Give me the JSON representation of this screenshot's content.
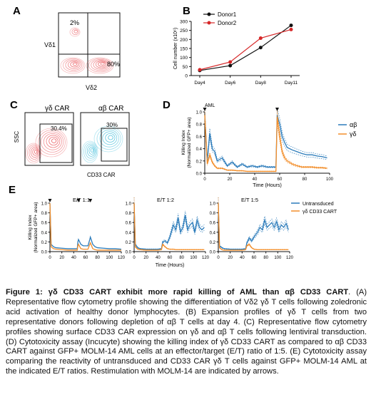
{
  "panels": {
    "A": {
      "label": "A",
      "ylabel": "Vδ1",
      "xlabel": "Vδ2",
      "q_upper_left": "2%",
      "q_lower_right": "80%"
    },
    "B": {
      "label": "B"
    },
    "C": {
      "label": "C",
      "ylabel": "SSC",
      "xlabel": "CD33 CAR",
      "plot1": {
        "title": "γδ CAR",
        "gate": "30.4%"
      },
      "plot2": {
        "title": "αβ CAR",
        "gate": "30%"
      }
    },
    "D": {
      "label": "D",
      "annotation": "AML"
    },
    "E": {
      "label": "E"
    }
  },
  "caption": {
    "bold": "Figure 1: γδ CD33 CART exhibit more rapid killing of AML than αβ CD33 CART",
    "body": ". (A) Representative flow cytometry profile showing the differentiation of Vδ2 γδ T cells following zoledronic acid activation of healthy donor lymphocytes. (B) Expansion profiles of γδ T cells from two representative donors following depletion of αβ T cells at day 4. (C) Representative flow cytometry profiles showing surface CD33 CAR expression on γδ and αβ T cells following lentiviral transduction. (D) Cytotoxicity assay (Incucyte) showing the killing index of γδ CD33 CART as compared to αβ CD33 CART against GFP+ MOLM-14 AML cells at an effector/target (E/T) ratio of 1:5. (E) Cytotoxicity assay comparing the reactivity of untransduced and CD33 CAR γδ T cells against GFP+ MOLM-14 AML at the indicated E/T ratios. Restimulation with MOLM-14 are indicated by arrows."
  },
  "colors": {
    "donor1": "#111111",
    "donor2": "#d62728",
    "ab": "#2b7bba",
    "gd": "#f28e2b",
    "flowA": "#e8444a",
    "flowC2": "#29b6d6"
  },
  "chart_data": [
    {
      "type": "line",
      "ylabel": "Cell number (x10⁶)",
      "categories": [
        "Day4",
        "Day6",
        "Day8",
        "Day11"
      ],
      "ylim": [
        0,
        300
      ],
      "yticks": [
        "0",
        "50",
        "100",
        "150",
        "200",
        "250",
        "300"
      ],
      "legend": "top-left",
      "series": [
        {
          "name": "Donor1",
          "values": [
            28,
            55,
            155,
            278
          ]
        },
        {
          "name": "Donor2",
          "values": [
            32,
            75,
            207,
            255
          ]
        }
      ]
    },
    {
      "type": "line",
      "ylabel": "Killing Index (Normalized GFP+ area)",
      "xlabel": "Time (Hours)",
      "xlim": [
        0,
        100
      ],
      "ylim": [
        0,
        1.0
      ],
      "xticks": [
        "0",
        "20",
        "40",
        "60",
        "80",
        "100"
      ],
      "yticks": [
        "0.0",
        "0.2",
        "0.4",
        "0.6",
        "0.8",
        "1.0"
      ],
      "legend": "right",
      "arrows_at": [
        0,
        58
      ],
      "series": [
        {
          "name": "αβ",
          "x": [
            0,
            2,
            4,
            6,
            8,
            10,
            14,
            18,
            22,
            26,
            30,
            34,
            38,
            42,
            46,
            50,
            54,
            56,
            57,
            58,
            60,
            62,
            64,
            66,
            70,
            74,
            78,
            82,
            86,
            90,
            94,
            98
          ],
          "values": [
            0.95,
            0.2,
            0.65,
            0.4,
            0.35,
            0.2,
            0.25,
            0.12,
            0.18,
            0.1,
            0.15,
            0.1,
            0.12,
            0.1,
            0.12,
            0.1,
            0.1,
            0.1,
            0.1,
            0.95,
            0.8,
            0.6,
            0.5,
            0.42,
            0.38,
            0.35,
            0.32,
            0.3,
            0.3,
            0.28,
            0.27,
            0.25
          ]
        },
        {
          "name": "γδ",
          "x": [
            0,
            2,
            4,
            6,
            8,
            10,
            14,
            18,
            22,
            26,
            30,
            34,
            38,
            42,
            46,
            50,
            54,
            56,
            57,
            58,
            60,
            62,
            64,
            66,
            70,
            74,
            78,
            82,
            86,
            90,
            94,
            98
          ],
          "values": [
            0.95,
            0.15,
            0.3,
            0.18,
            0.12,
            0.08,
            0.08,
            0.05,
            0.05,
            0.04,
            0.04,
            0.03,
            0.03,
            0.03,
            0.03,
            0.03,
            0.03,
            0.03,
            0.03,
            0.92,
            0.6,
            0.35,
            0.25,
            0.2,
            0.15,
            0.12,
            0.1,
            0.1,
            0.1,
            0.09,
            0.09,
            0.08
          ]
        }
      ]
    },
    {
      "type": "line",
      "ylabel": "Killing Index (Normalized GFP+ area)",
      "xlabel": "Time (Hours)",
      "xlim": [
        0,
        120
      ],
      "ylim": [
        0,
        1.0
      ],
      "xticks": [
        "0",
        "20",
        "40",
        "60",
        "80",
        "100",
        "120"
      ],
      "yticks": [
        "0.0",
        "0.2",
        "0.4",
        "0.6",
        "0.8",
        "1.0"
      ],
      "legend": "right",
      "panels": [
        {
          "title": "E/T 1:1",
          "arrows_at": [
            0,
            48,
            68
          ],
          "series": [
            {
              "name": "Untransduced",
              "x": [
                0,
                2,
                6,
                10,
                20,
                30,
                40,
                46,
                47,
                48,
                52,
                56,
                60,
                64,
                67,
                68,
                72,
                76,
                80,
                90,
                100,
                110,
                120
              ],
              "values": [
                1.0,
                0.15,
                0.1,
                0.08,
                0.07,
                0.06,
                0.06,
                0.06,
                0.2,
                0.25,
                0.15,
                0.12,
                0.12,
                0.12,
                0.25,
                0.3,
                0.15,
                0.1,
                0.08,
                0.07,
                0.06,
                0.06,
                0.05
              ]
            },
            {
              "name": "γδ CD33 CART",
              "x": [
                0,
                2,
                6,
                10,
                20,
                30,
                40,
                46,
                47,
                48,
                52,
                56,
                60,
                64,
                67,
                68,
                72,
                76,
                80,
                90,
                100,
                110,
                120
              ],
              "values": [
                1.0,
                0.1,
                0.06,
                0.05,
                0.04,
                0.03,
                0.03,
                0.03,
                0.12,
                0.15,
                0.06,
                0.05,
                0.05,
                0.05,
                0.15,
                0.18,
                0.06,
                0.04,
                0.03,
                0.03,
                0.03,
                0.03,
                0.03
              ]
            }
          ]
        },
        {
          "title": "E/T 1:2",
          "series": [
            {
              "name": "Untransduced",
              "x": [
                0,
                2,
                6,
                10,
                20,
                30,
                40,
                46,
                48,
                52,
                56,
                60,
                66,
                70,
                74,
                78,
                82,
                86,
                90,
                94,
                98,
                102,
                106,
                110,
                114,
                118
              ],
              "values": [
                1.0,
                0.15,
                0.08,
                0.06,
                0.05,
                0.05,
                0.05,
                0.06,
                0.2,
                0.22,
                0.18,
                0.3,
                0.55,
                0.45,
                0.7,
                0.4,
                0.5,
                0.75,
                0.45,
                0.55,
                0.6,
                0.4,
                0.65,
                0.5,
                0.45,
                0.5
              ]
            },
            {
              "name": "γδ CD33 CART",
              "x": [
                0,
                2,
                6,
                10,
                20,
                30,
                40,
                46,
                48,
                52,
                56,
                60,
                66,
                70,
                74,
                78,
                82,
                86,
                90,
                94,
                98,
                102,
                106,
                110,
                114,
                118
              ],
              "values": [
                1.0,
                0.1,
                0.05,
                0.04,
                0.03,
                0.03,
                0.03,
                0.04,
                0.15,
                0.1,
                0.06,
                0.05,
                0.05,
                0.04,
                0.04,
                0.04,
                0.04,
                0.04,
                0.04,
                0.04,
                0.04,
                0.04,
                0.04,
                0.04,
                0.04,
                0.04
              ]
            }
          ]
        },
        {
          "title": "E/T 1:5",
          "series": [
            {
              "name": "Untransduced",
              "x": [
                0,
                2,
                6,
                10,
                20,
                30,
                40,
                46,
                48,
                52,
                56,
                60,
                66,
                70,
                74,
                78,
                82,
                86,
                90,
                94,
                98,
                102,
                106,
                110,
                114,
                118
              ],
              "values": [
                1.0,
                0.12,
                0.08,
                0.06,
                0.05,
                0.05,
                0.05,
                0.06,
                0.18,
                0.28,
                0.22,
                0.3,
                0.4,
                0.5,
                0.45,
                0.65,
                0.5,
                0.55,
                0.6,
                0.5,
                0.62,
                0.45,
                0.55,
                0.5,
                0.58,
                0.45
              ]
            },
            {
              "name": "γδ CD33 CART",
              "x": [
                0,
                2,
                6,
                10,
                20,
                30,
                40,
                46,
                48,
                52,
                56,
                60,
                66,
                70,
                74,
                78,
                82,
                86,
                90,
                94,
                98,
                102,
                106,
                110,
                114,
                118
              ],
              "values": [
                1.0,
                0.08,
                0.04,
                0.03,
                0.03,
                0.03,
                0.03,
                0.04,
                0.12,
                0.15,
                0.08,
                0.05,
                0.04,
                0.04,
                0.04,
                0.04,
                0.04,
                0.04,
                0.04,
                0.04,
                0.04,
                0.04,
                0.04,
                0.04,
                0.04,
                0.04
              ]
            }
          ]
        }
      ]
    }
  ]
}
